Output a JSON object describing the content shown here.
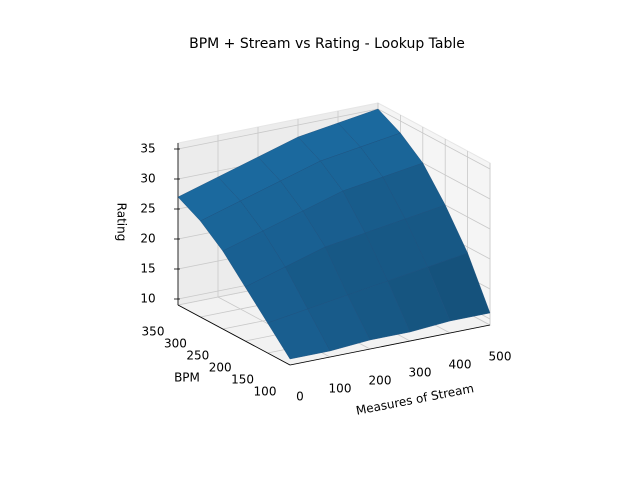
{
  "chart_data": {
    "type": "surface",
    "title": "BPM + Stream vs Rating - Lookup Table",
    "xlabel": "Measures of Stream",
    "ylabel": "BPM",
    "zlabel": "Rating",
    "x": [
      0,
      100,
      200,
      300,
      400,
      500
    ],
    "y": [
      100,
      150,
      200,
      250,
      300,
      350
    ],
    "z": [
      [
        10,
        10,
        10.5,
        10.5,
        11,
        11
      ],
      [
        14,
        15,
        16,
        17,
        18,
        19
      ],
      [
        18,
        20,
        22,
        23,
        24,
        25
      ],
      [
        22,
        24,
        26,
        28,
        29,
        30
      ],
      [
        25,
        27,
        29,
        31,
        32,
        33
      ],
      [
        27,
        29,
        31,
        33,
        34,
        35
      ]
    ],
    "color": "#1f77b4",
    "xlim": [
      0,
      500
    ],
    "ylim": [
      100,
      350
    ],
    "zlim": [
      9,
      36
    ],
    "xticks": [
      0,
      100,
      200,
      300,
      400,
      500
    ],
    "yticks": [
      100,
      150,
      200,
      250,
      300,
      350
    ],
    "zticks": [
      10,
      15,
      20,
      25,
      30,
      35
    ],
    "grid": true
  }
}
